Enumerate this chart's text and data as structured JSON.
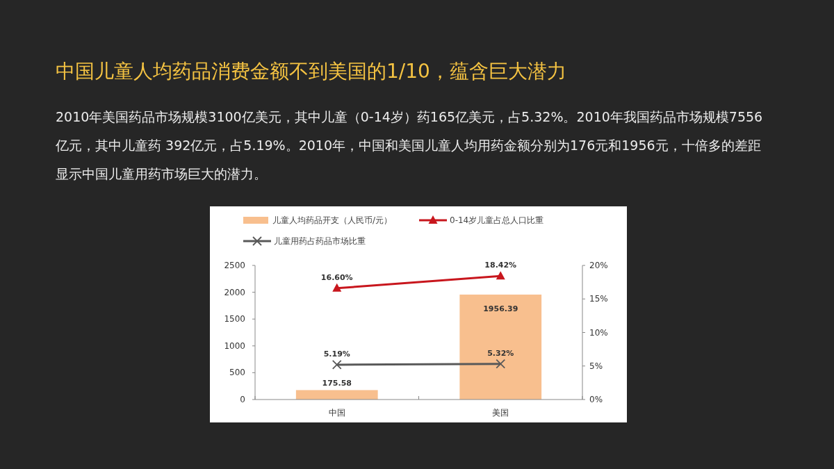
{
  "chart_data": {
    "type": "bar",
    "title": "中国儿童人均药品消费金额不到美国的1/10，蕴含巨大潜力",
    "subtitle": "2010年美国药品市场规模3100亿美元，其中儿童（0-14岁）药165亿美元，占5.32%。2010年我国药品市场规模7556亿元，其中儿童药 392亿元，占5.19%。2010年，中国和美国儿童人均用药金额分别为176元和1956元，十倍多的差距显示中国儿童用药市场巨大的潜力。",
    "categories": [
      "中国",
      "美国"
    ],
    "series": [
      {
        "name": "儿童人均药品开支（人民币/元）",
        "color": "#f8bf8e",
        "values": [
          175.58,
          1956.39
        ],
        "value_labels": [
          "175.58",
          "1956.39"
        ]
      },
      {
        "name": "0-14岁儿童占总人口比重",
        "type": "line",
        "axis": "y2",
        "color": "#c8161d",
        "marker": "triangle",
        "values": [
          16.6,
          18.42
        ],
        "value_labels": [
          "16.60%",
          "18.42%"
        ]
      },
      {
        "name": "儿童用药占药品市场比重",
        "type": "line",
        "axis": "y2",
        "color": "#595959",
        "marker": "cross",
        "values": [
          5.19,
          5.32
        ],
        "value_labels": [
          "5.19%",
          "5.32%"
        ]
      }
    ],
    "ylim": [
      0,
      2500
    ],
    "yticks": [
      0,
      500,
      1000,
      1500,
      2000,
      2500
    ],
    "y2lim": [
      0,
      20
    ],
    "y2ticks": [
      {
        "value": 0,
        "label": "0%"
      },
      {
        "value": 5,
        "label": "5%"
      },
      {
        "value": 10,
        "label": "10%"
      },
      {
        "value": 15,
        "label": "15%"
      },
      {
        "value": 20,
        "label": "20%"
      }
    ],
    "legend": "top",
    "grid": false
  }
}
